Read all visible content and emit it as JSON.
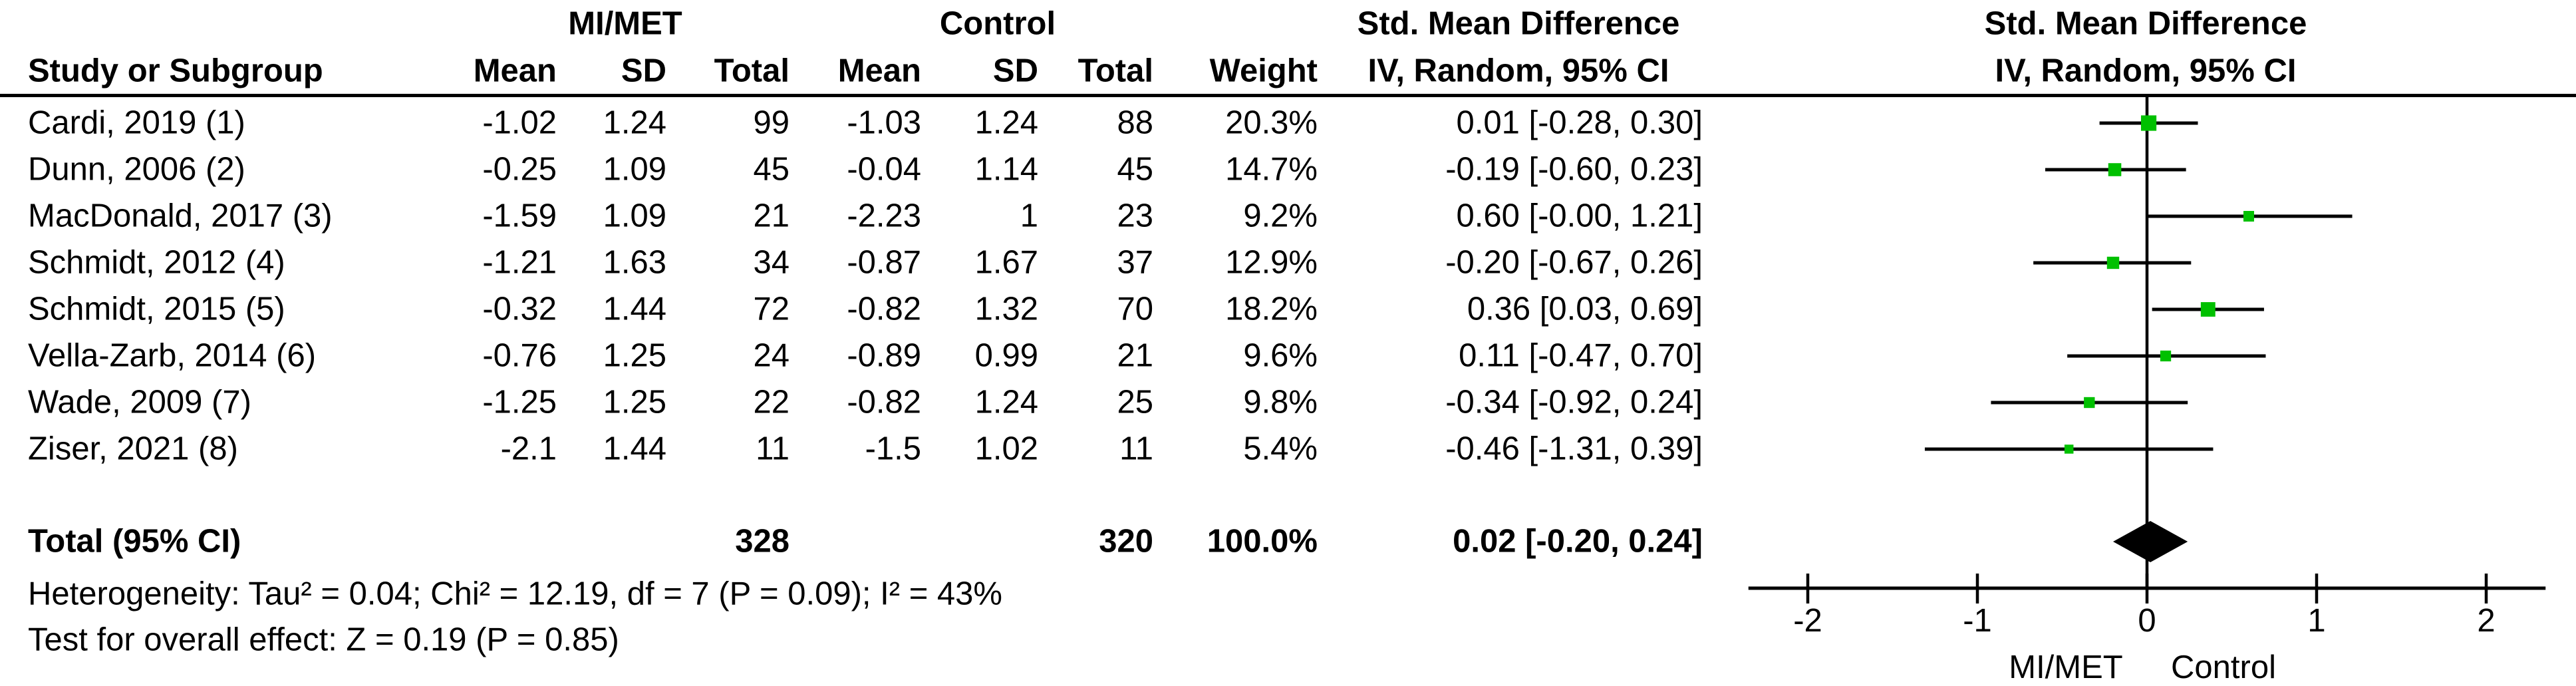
{
  "chart_data": {
    "type": "forest",
    "effect_measure": "Std. Mean Difference",
    "model": "IV, Random, 95% CI",
    "group1_label": "MI/MET",
    "group2_label": "Control",
    "columns": {
      "study": "Study or Subgroup",
      "mean": "Mean",
      "sd": "SD",
      "total": "Total",
      "weight": "Weight"
    },
    "studies": [
      {
        "name": "Cardi, 2019 (1)",
        "mean1": "-1.02",
        "sd1": "1.24",
        "n1": "99",
        "mean2": "-1.03",
        "sd2": "1.24",
        "n2": "88",
        "weight": "20.3%",
        "weight_value": 20.3,
        "ci_label": "0.01 [-0.28, 0.30]",
        "est": 0.01,
        "lo": -0.28,
        "hi": 0.3
      },
      {
        "name": "Dunn, 2006 (2)",
        "mean1": "-0.25",
        "sd1": "1.09",
        "n1": "45",
        "mean2": "-0.04",
        "sd2": "1.14",
        "n2": "45",
        "weight": "14.7%",
        "weight_value": 14.7,
        "ci_label": "-0.19 [-0.60, 0.23]",
        "est": -0.19,
        "lo": -0.6,
        "hi": 0.23
      },
      {
        "name": "MacDonald, 2017 (3)",
        "mean1": "-1.59",
        "sd1": "1.09",
        "n1": "21",
        "mean2": "-2.23",
        "sd2": "1",
        "n2": "23",
        "weight": "9.2%",
        "weight_value": 9.2,
        "ci_label": "0.60 [-0.00, 1.21]",
        "est": 0.6,
        "lo": 0.0,
        "hi": 1.21
      },
      {
        "name": "Schmidt, 2012 (4)",
        "mean1": "-1.21",
        "sd1": "1.63",
        "n1": "34",
        "mean2": "-0.87",
        "sd2": "1.67",
        "n2": "37",
        "weight": "12.9%",
        "weight_value": 12.9,
        "ci_label": "-0.20 [-0.67, 0.26]",
        "est": -0.2,
        "lo": -0.67,
        "hi": 0.26
      },
      {
        "name": "Schmidt, 2015 (5)",
        "mean1": "-0.32",
        "sd1": "1.44",
        "n1": "72",
        "mean2": "-0.82",
        "sd2": "1.32",
        "n2": "70",
        "weight": "18.2%",
        "weight_value": 18.2,
        "ci_label": "0.36 [0.03, 0.69]",
        "est": 0.36,
        "lo": 0.03,
        "hi": 0.69
      },
      {
        "name": "Vella-Zarb, 2014 (6)",
        "mean1": "-0.76",
        "sd1": "1.25",
        "n1": "24",
        "mean2": "-0.89",
        "sd2": "0.99",
        "n2": "21",
        "weight": "9.6%",
        "weight_value": 9.6,
        "ci_label": "0.11 [-0.47, 0.70]",
        "est": 0.11,
        "lo": -0.47,
        "hi": 0.7
      },
      {
        "name": "Wade, 2009 (7)",
        "mean1": "-1.25",
        "sd1": "1.25",
        "n1": "22",
        "mean2": "-0.82",
        "sd2": "1.24",
        "n2": "25",
        "weight": "9.8%",
        "weight_value": 9.8,
        "ci_label": "-0.34 [-0.92, 0.24]",
        "est": -0.34,
        "lo": -0.92,
        "hi": 0.24
      },
      {
        "name": "Ziser, 2021 (8)",
        "mean1": "-2.1",
        "sd1": "1.44",
        "n1": "11",
        "mean2": "-1.5",
        "sd2": "1.02",
        "n2": "11",
        "weight": "5.4%",
        "weight_value": 5.4,
        "ci_label": "-0.46 [-1.31, 0.39]",
        "est": -0.46,
        "lo": -1.31,
        "hi": 0.39
      }
    ],
    "total": {
      "name": "Total (95% CI)",
      "n1": "328",
      "n2": "320",
      "weight": "100.0%",
      "weight_value": 100.0,
      "ci_label": "0.02 [-0.20, 0.24]",
      "est": 0.02,
      "lo": -0.2,
      "hi": 0.24
    },
    "footer_heterogeneity": "Heterogeneity: Tau² = 0.04; Chi² = 12.19, df = 7 (P = 0.09); I² = 43%",
    "footer_overall": "Test for overall effect: Z = 0.19 (P = 0.85)",
    "axis": {
      "ticks": [
        -2,
        -1,
        0,
        1,
        2
      ],
      "xlim": [
        -2.35,
        2.35
      ],
      "left_label": "MI/MET",
      "right_label": "Control"
    },
    "colors": {
      "marker": "#00C000",
      "line": "#000000"
    }
  }
}
